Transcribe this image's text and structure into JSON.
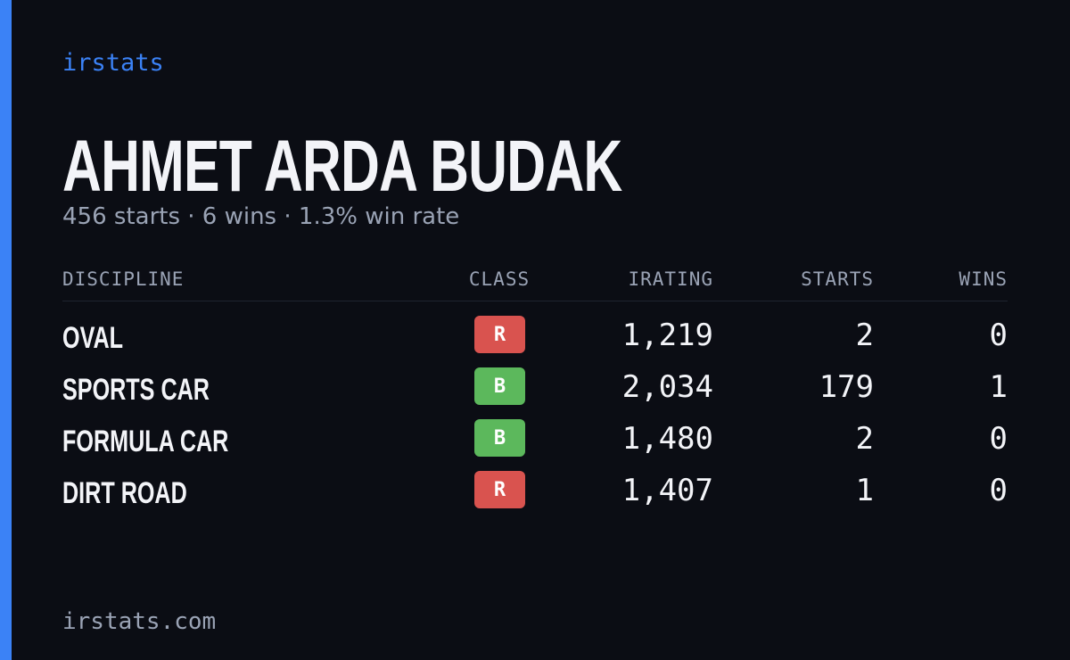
{
  "brand": "irstats",
  "driver": {
    "name": "AHMET ARDA BUDAK",
    "summary": "456 starts · 6 wins · 1.3% win rate"
  },
  "table": {
    "headers": [
      "DISCIPLINE",
      "CLASS",
      "IRATING",
      "STARTS",
      "WINS"
    ],
    "rows": [
      [
        "OVAL",
        {
          "label": "R",
          "color": "#d9534f"
        },
        "1,219",
        "2",
        "0"
      ],
      [
        "SPORTS CAR",
        {
          "label": "B",
          "color": "#5cb85c"
        },
        "2,034",
        "179",
        "1"
      ],
      [
        "FORMULA CAR",
        {
          "label": "B",
          "color": "#5cb85c"
        },
        "1,480",
        "2",
        "0"
      ],
      [
        "DIRT ROAD",
        {
          "label": "R",
          "color": "#d9534f"
        },
        "1,407",
        "1",
        "0"
      ]
    ]
  },
  "footer": "irstats.com"
}
